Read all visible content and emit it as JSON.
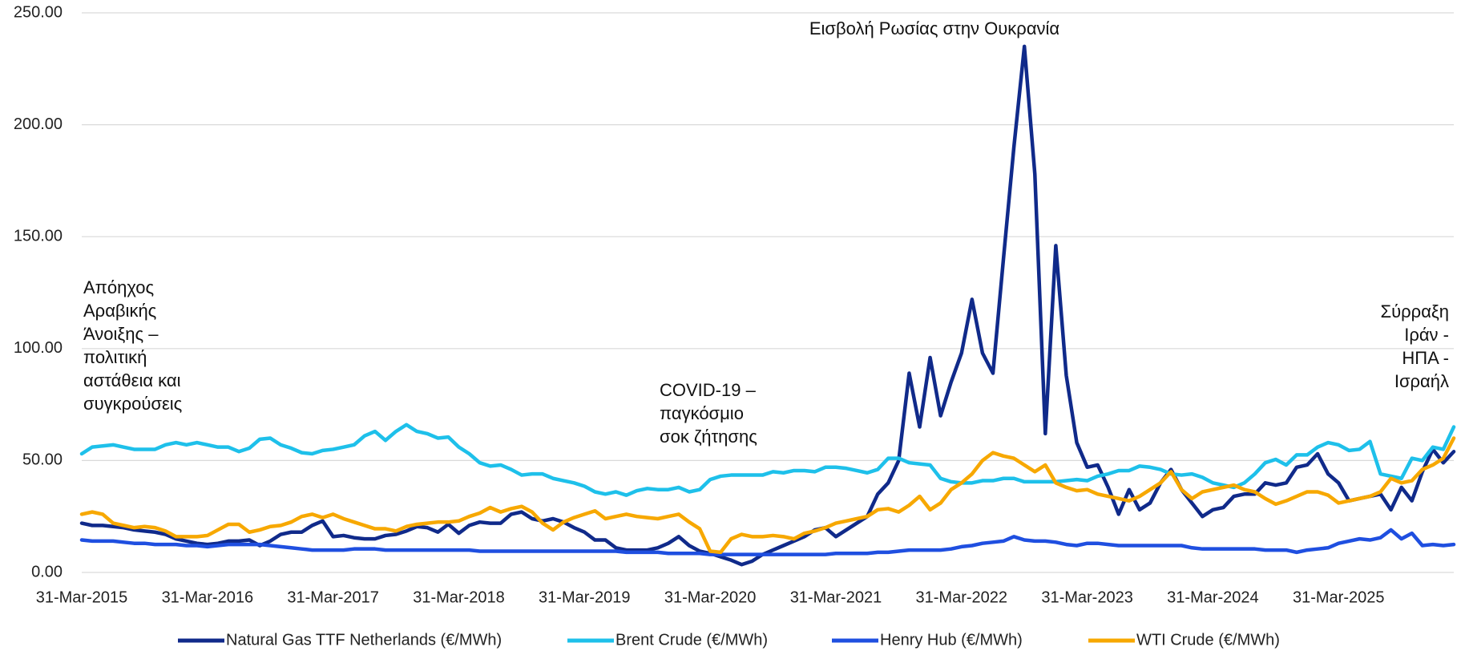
{
  "chart_data": {
    "type": "line",
    "categories": [
      "31-Mar-2015",
      null,
      null,
      null,
      null,
      null,
      null,
      null,
      null,
      null,
      null,
      null,
      "31-Mar-2016",
      null,
      null,
      null,
      null,
      null,
      null,
      null,
      null,
      null,
      null,
      null,
      "31-Mar-2017",
      null,
      null,
      null,
      null,
      null,
      null,
      null,
      null,
      null,
      null,
      null,
      "31-Mar-2018",
      null,
      null,
      null,
      null,
      null,
      null,
      null,
      null,
      null,
      null,
      null,
      "31-Mar-2019",
      null,
      null,
      null,
      null,
      null,
      null,
      null,
      null,
      null,
      null,
      null,
      "31-Mar-2020",
      null,
      null,
      null,
      null,
      null,
      null,
      null,
      null,
      null,
      null,
      null,
      "31-Mar-2021",
      null,
      null,
      null,
      null,
      null,
      null,
      null,
      null,
      null,
      null,
      null,
      "31-Mar-2022",
      null,
      null,
      null,
      null,
      null,
      null,
      null,
      null,
      null,
      null,
      null,
      "31-Mar-2023",
      null,
      null,
      null,
      null,
      null,
      null,
      null,
      null,
      null,
      null,
      null,
      "31-Mar-2024",
      null,
      null,
      null,
      null,
      null,
      null,
      null,
      null,
      null,
      null,
      null,
      "31-Mar-2025",
      null,
      null,
      null,
      null,
      null,
      null,
      null,
      null,
      null,
      null,
      null
    ],
    "series": [
      {
        "name": "Natural Gas TTF Netherlands (€/MWh)",
        "color": "#102a8a",
        "values": [
          22,
          21,
          21,
          20.5,
          20,
          19,
          18.5,
          18,
          17,
          15,
          14,
          13,
          12.5,
          13,
          14,
          14,
          14.5,
          12,
          14,
          17,
          18,
          18,
          21,
          23,
          16,
          16.5,
          15.5,
          15,
          15,
          16.5,
          17,
          18.5,
          20.5,
          20,
          18,
          21.5,
          17.5,
          21,
          22.5,
          22,
          22,
          26,
          27,
          24,
          23,
          24,
          22.5,
          20,
          18,
          14.5,
          14.5,
          11,
          10,
          10,
          10,
          11,
          13,
          16,
          12,
          9.5,
          8.5,
          7,
          5.5,
          3.5,
          5,
          8,
          10,
          12,
          14,
          16,
          19,
          20,
          16,
          19,
          22,
          25,
          35,
          40,
          50,
          89,
          65,
          96,
          70,
          85,
          98,
          122,
          98,
          89,
          140,
          190,
          235,
          178,
          62,
          146,
          88,
          58,
          47,
          48,
          38,
          26,
          37,
          28,
          31,
          40,
          46,
          37,
          31,
          25,
          28,
          29,
          34,
          35,
          35,
          40,
          39,
          40,
          47,
          48,
          53,
          44,
          40,
          32,
          33,
          34,
          35,
          28,
          38,
          32,
          45,
          55,
          49,
          54
        ]
      },
      {
        "name": "Brent Crude (€/MWh)",
        "color": "#1ec0ea",
        "values": [
          53,
          56,
          56.5,
          57,
          56,
          55,
          55,
          55,
          57,
          58,
          57,
          58,
          57,
          56,
          56,
          54,
          55.5,
          59.5,
          60,
          57,
          55.5,
          53.5,
          53,
          54.5,
          55,
          56,
          57,
          61,
          63,
          59,
          63,
          66,
          63,
          62,
          60,
          60.5,
          56,
          53,
          49,
          47.5,
          48,
          46,
          43.5,
          44,
          44,
          42,
          41,
          40,
          38.5,
          36,
          35,
          36,
          34.5,
          36.5,
          37.5,
          37,
          37,
          38,
          36,
          37,
          41.5,
          43,
          43.5,
          43.5,
          43.5,
          43.5,
          45,
          44.5,
          45.5,
          45.5,
          45,
          47,
          47,
          46.5,
          45.5,
          44.5,
          46,
          51,
          51,
          49,
          48.5,
          48,
          42,
          40.5,
          40,
          40,
          41,
          41,
          42,
          42,
          40.5,
          40.5,
          40.5,
          40.5,
          41,
          41.5,
          41,
          43,
          44,
          45.5,
          45.5,
          47.5,
          47,
          46,
          44,
          43.5,
          44,
          42.5,
          40,
          39,
          38,
          40,
          44,
          49,
          50.5,
          48,
          52.5,
          52.5,
          56,
          58,
          57,
          54.5,
          55,
          58.5,
          44,
          43,
          42,
          51,
          50,
          56,
          55,
          65
        ]
      },
      {
        "name": "Henry Hub (€/MWh)",
        "color": "#1f4fe0",
        "values": [
          14.5,
          14,
          14,
          14,
          13.5,
          13,
          13,
          12.5,
          12.5,
          12.5,
          12,
          12,
          11.5,
          12,
          12.5,
          12.5,
          12.5,
          12.5,
          12,
          11.5,
          11,
          10.5,
          10,
          10,
          10,
          10,
          10.5,
          10.5,
          10.5,
          10,
          10,
          10,
          10,
          10,
          10,
          10,
          10,
          10,
          9.5,
          9.5,
          9.5,
          9.5,
          9.5,
          9.5,
          9.5,
          9.5,
          9.5,
          9.5,
          9.5,
          9.5,
          9.5,
          9.5,
          9,
          9,
          9,
          9,
          8.5,
          8.5,
          8.5,
          8.5,
          8,
          8,
          8,
          8,
          8,
          8,
          8,
          8,
          8,
          8,
          8,
          8,
          8.5,
          8.5,
          8.5,
          8.5,
          9,
          9,
          9.5,
          10,
          10,
          10,
          10,
          10.5,
          11.5,
          12,
          13,
          13.5,
          14,
          16,
          14.5,
          14,
          14,
          13.5,
          12.5,
          12,
          13,
          13,
          12.5,
          12,
          12,
          12,
          12,
          12,
          12,
          12,
          11,
          10.5,
          10.5,
          10.5,
          10.5,
          10.5,
          10.5,
          10,
          10,
          10,
          9,
          10,
          10.5,
          11,
          13,
          14,
          15,
          14.5,
          15.5,
          19,
          15,
          17.5,
          12,
          12.5,
          12,
          12.5
        ]
      },
      {
        "name": "WTI Crude (€/MWh)",
        "color": "#f7a800",
        "values": [
          26,
          27,
          26,
          22,
          21,
          20,
          20.5,
          20,
          18.5,
          16,
          16,
          16,
          16.5,
          19,
          21.5,
          21.5,
          18,
          19,
          20.5,
          21,
          22.5,
          25,
          26,
          24.5,
          26,
          24,
          22.5,
          21,
          19.5,
          19.5,
          18.5,
          20.5,
          21.5,
          22,
          22.5,
          22.5,
          23,
          25,
          26.5,
          29,
          27,
          28.5,
          29.5,
          27,
          22,
          19,
          22.5,
          24.5,
          26,
          27.5,
          24,
          25,
          26,
          25,
          24.5,
          24,
          25,
          26,
          22.5,
          19.5,
          9.5,
          9,
          15,
          17,
          16,
          16,
          16.5,
          16,
          15,
          17.5,
          18.5,
          20,
          22,
          23,
          24,
          25,
          28,
          28.5,
          27,
          30,
          34,
          28,
          31,
          37,
          40,
          44,
          50,
          53.5,
          52,
          51,
          48,
          45,
          48,
          40,
          38,
          36.5,
          37,
          35,
          34,
          33,
          32,
          34,
          37,
          40,
          45,
          37,
          33,
          36,
          37,
          38,
          39,
          37,
          36,
          33,
          30.5,
          32,
          34,
          36,
          36,
          34.5,
          31,
          32,
          33,
          34,
          36,
          42,
          40,
          41,
          46,
          48,
          51,
          60
        ]
      }
    ],
    "ylim": [
      0,
      250
    ],
    "yticks": [
      {
        "value": 0,
        "label": "0.00"
      },
      {
        "value": 50,
        "label": "50.00"
      },
      {
        "value": 100,
        "label": "100.00"
      },
      {
        "value": 150,
        "label": "150.00"
      },
      {
        "value": 200,
        "label": "200.00"
      },
      {
        "value": 250,
        "label": "250.00"
      }
    ],
    "grid": true,
    "legend": "bottom",
    "annotations": [
      {
        "lines": [
          "Απόηχος",
          "Αραβικής",
          "Άνοιξης –",
          "πολιτική",
          "αστάθεια και",
          "συγκρούσεις"
        ]
      },
      {
        "lines": [
          "COVID-19 –",
          "παγκόσμιο",
          "σοκ ζήτησης"
        ]
      },
      {
        "lines": [
          "Εισβολή Ρωσίας στην Ουκρανία"
        ]
      },
      {
        "lines": [
          "Σύρραξη",
          "Ιράν -",
          "ΗΠΑ -",
          "Ισραήλ"
        ]
      }
    ]
  }
}
